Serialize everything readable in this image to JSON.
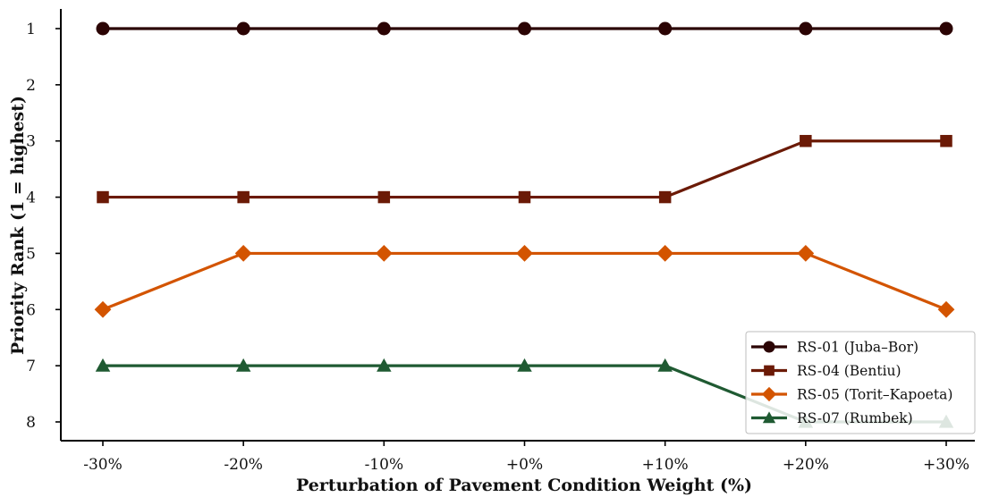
{
  "chart_data": {
    "type": "line",
    "title": "",
    "xlabel": "Perturbation of Pavement Condition Weight (%)",
    "ylabel": "Priority Rank (1 = highest)",
    "categories": [
      "-30%",
      "-20%",
      "-10%",
      "+0%",
      "+10%",
      "+20%",
      "+30%"
    ],
    "y_ticks": [
      1,
      2,
      3,
      4,
      5,
      6,
      7,
      8
    ],
    "ylim": [
      8.35,
      0.65
    ],
    "y_inverted": true,
    "grid": false,
    "legend_position": "lower-right",
    "series": [
      {
        "name": "RS-01 (Juba–Bor)",
        "values": [
          1,
          1,
          1,
          1,
          1,
          1,
          1
        ],
        "color": "#2b0404",
        "marker": "circle"
      },
      {
        "name": "RS-04 (Bentiu)",
        "values": [
          4,
          4,
          4,
          4,
          4,
          3,
          3
        ],
        "color": "#6b1a06",
        "marker": "square"
      },
      {
        "name": "RS-05 (Torit–Kapoeta)",
        "values": [
          6,
          5,
          5,
          5,
          5,
          5,
          6
        ],
        "color": "#d35400",
        "marker": "diamond"
      },
      {
        "name": "RS-07 (Rumbek)",
        "values": [
          7,
          7,
          7,
          7,
          7,
          8,
          8
        ],
        "color": "#1f5a32",
        "marker": "triangle"
      }
    ]
  }
}
